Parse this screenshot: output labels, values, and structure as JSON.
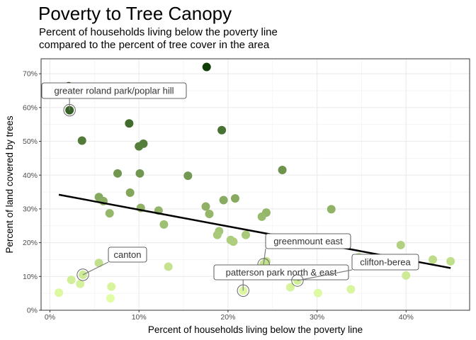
{
  "chart_data": {
    "type": "scatter",
    "title": "Poverty to Tree Canopy",
    "subtitle_lines": [
      "Percent of households living below the poverty line",
      "compared to the percent of tree cover in the area"
    ],
    "xlabel": "Percent of households living below the poverty line",
    "ylabel": "Percent of land covered by trees",
    "xlim": [
      0,
      47
    ],
    "ylim": [
      0,
      74
    ],
    "x_ticks": [
      0,
      10,
      20,
      30,
      40
    ],
    "x_tick_labels": [
      "0%",
      "10%",
      "20%",
      "30%",
      "40%"
    ],
    "y_ticks": [
      0,
      10,
      20,
      30,
      40,
      50,
      60,
      70
    ],
    "y_tick_labels": [
      "0%",
      "10%",
      "20%",
      "30%",
      "40%",
      "50%",
      "60%",
      "70%"
    ],
    "grid": true,
    "color_scale": {
      "low": "#e3ffa6",
      "high": "#0f3d06",
      "encodes": "tree canopy percent"
    },
    "points": [
      {
        "x": 2.1,
        "y": 66.3
      },
      {
        "x": 17.6,
        "y": 72.0
      },
      {
        "x": 2.2,
        "y": 59.2
      },
      {
        "x": 8.9,
        "y": 55.3
      },
      {
        "x": 19.3,
        "y": 53.3
      },
      {
        "x": 3.6,
        "y": 50.2
      },
      {
        "x": 10.5,
        "y": 49.3
      },
      {
        "x": 10.0,
        "y": 48.5
      },
      {
        "x": 7.6,
        "y": 40.5
      },
      {
        "x": 10.1,
        "y": 40.5
      },
      {
        "x": 26.1,
        "y": 41.5
      },
      {
        "x": 15.5,
        "y": 39.8
      },
      {
        "x": 9.0,
        "y": 34.8
      },
      {
        "x": 5.5,
        "y": 33.5
      },
      {
        "x": 6.0,
        "y": 32.3
      },
      {
        "x": 20.8,
        "y": 33.1
      },
      {
        "x": 19.5,
        "y": 32.6
      },
      {
        "x": 17.5,
        "y": 30.7
      },
      {
        "x": 10.2,
        "y": 30.3
      },
      {
        "x": 31.6,
        "y": 29.9
      },
      {
        "x": 6.7,
        "y": 28.7
      },
      {
        "x": 12.2,
        "y": 29.5
      },
      {
        "x": 17.9,
        "y": 28.5
      },
      {
        "x": 24.3,
        "y": 28.9
      },
      {
        "x": 23.8,
        "y": 27.7
      },
      {
        "x": 12.8,
        "y": 25.4
      },
      {
        "x": 19.0,
        "y": 23.4
      },
      {
        "x": 18.8,
        "y": 22.3
      },
      {
        "x": 22.0,
        "y": 22.3
      },
      {
        "x": 20.3,
        "y": 20.8
      },
      {
        "x": 20.6,
        "y": 20.3
      },
      {
        "x": 39.4,
        "y": 19.3
      },
      {
        "x": 34.7,
        "y": 15.7
      },
      {
        "x": 24.3,
        "y": 14.5
      },
      {
        "x": 5.5,
        "y": 14.0
      },
      {
        "x": 24.0,
        "y": 13.6
      },
      {
        "x": 43.0,
        "y": 15.0
      },
      {
        "x": 45.0,
        "y": 14.5
      },
      {
        "x": 13.3,
        "y": 12.9
      },
      {
        "x": 22.8,
        "y": 12.3
      },
      {
        "x": 3.7,
        "y": 10.5
      },
      {
        "x": 40.0,
        "y": 10.3
      },
      {
        "x": 2.4,
        "y": 9.0
      },
      {
        "x": 27.8,
        "y": 8.8
      },
      {
        "x": 3.4,
        "y": 7.8
      },
      {
        "x": 6.9,
        "y": 7.0
      },
      {
        "x": 27.0,
        "y": 6.8
      },
      {
        "x": 33.8,
        "y": 6.2
      },
      {
        "x": 21.7,
        "y": 5.8
      },
      {
        "x": 1.0,
        "y": 5.2
      },
      {
        "x": 30.1,
        "y": 5.1
      },
      {
        "x": 6.8,
        "y": 3.5
      }
    ],
    "trend_line": {
      "x": [
        1.0,
        45.0
      ],
      "y": [
        34.2,
        12.5
      ]
    },
    "annotations": [
      {
        "label": "greater roland park/poplar hill",
        "x": 2.2,
        "y": 59.2
      },
      {
        "label": "canton",
        "x": 3.7,
        "y": 10.5
      },
      {
        "label": "greenmount east",
        "x": 24.0,
        "y": 13.6
      },
      {
        "label": "patterson park north & east",
        "x": 21.7,
        "y": 5.8
      },
      {
        "label": "clifton-berea",
        "x": 27.8,
        "y": 8.8
      }
    ]
  }
}
